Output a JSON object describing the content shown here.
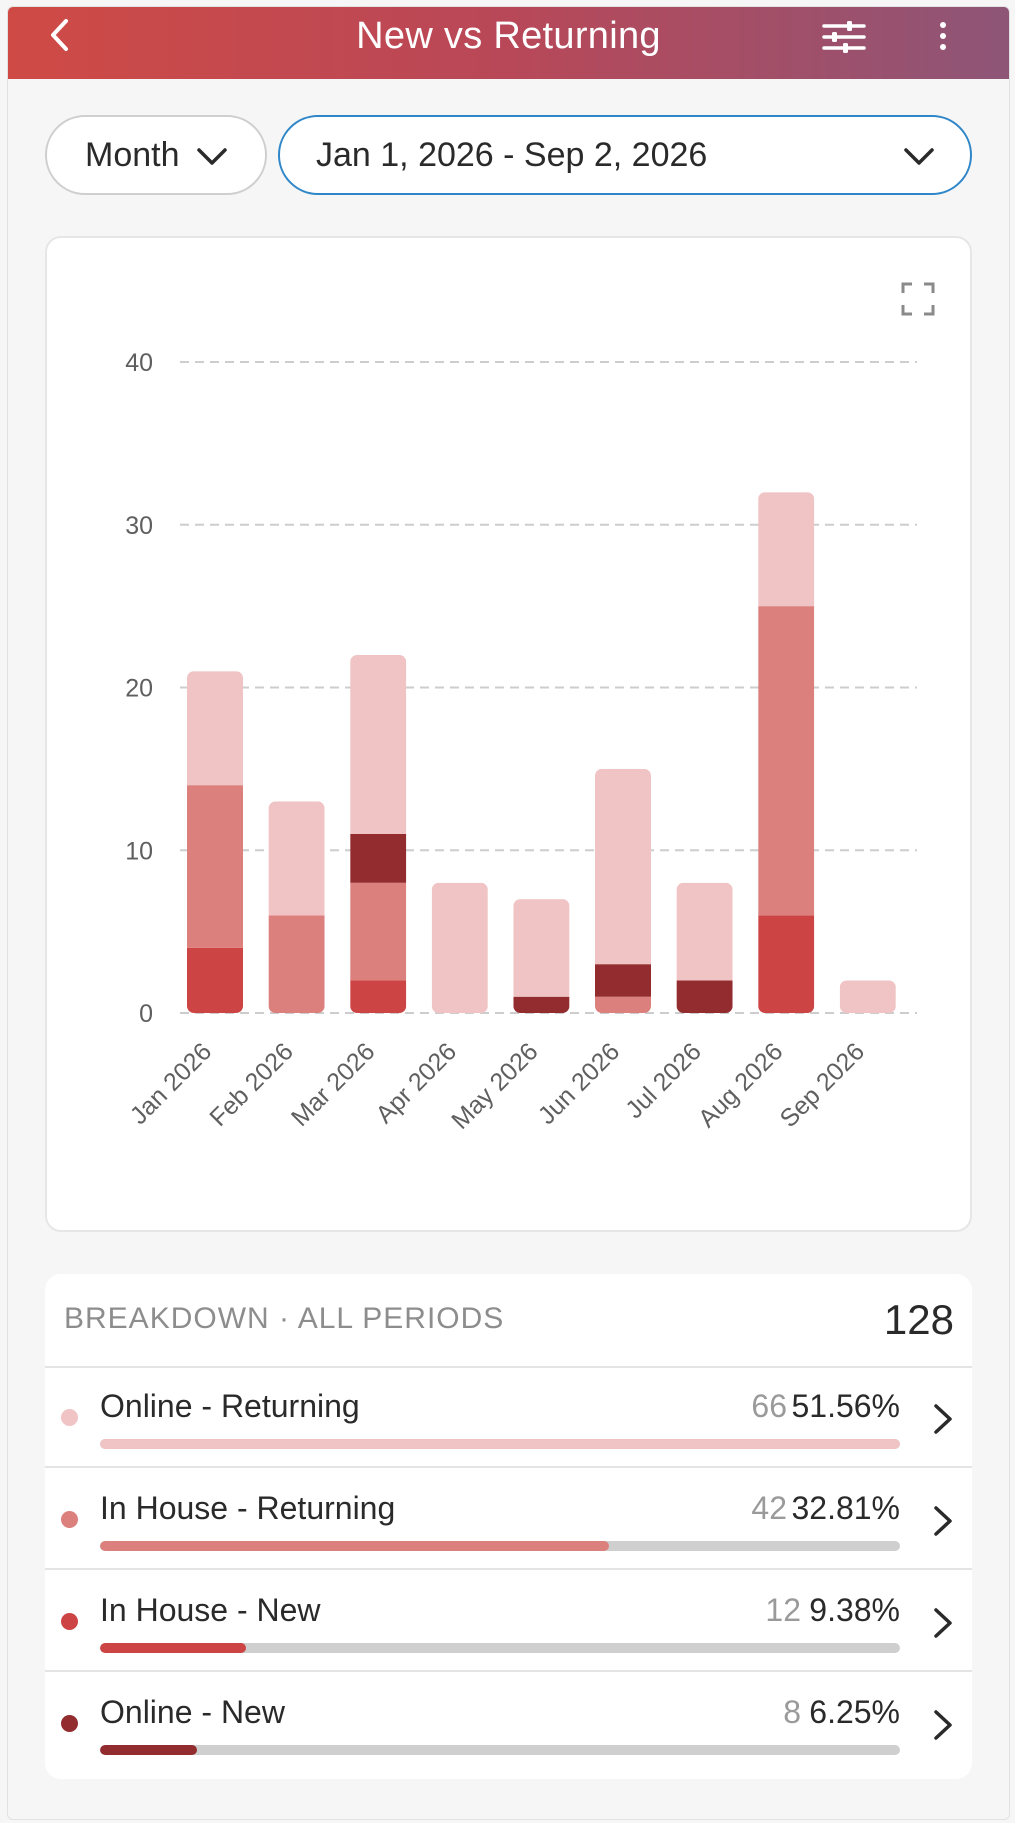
{
  "header": {
    "title": "New vs Returning"
  },
  "filters": {
    "period": "Month",
    "date_range": "Jan 1, 2026 - Sep 2, 2026"
  },
  "colors": {
    "online_returning": "#f0c3c4",
    "in_house_returning": "#db807c",
    "in_house_new": "#cc4444",
    "online_new": "#922c2e"
  },
  "chart_data": {
    "type": "bar",
    "stacked": true,
    "categories": [
      "Jan 2026",
      "Feb 2026",
      "Mar 2026",
      "Apr 2026",
      "May 2026",
      "Jun 2026",
      "Jul 2026",
      "Aug 2026",
      "Sep 2026"
    ],
    "series": [
      {
        "name": "In House - New",
        "color": "#cc4444",
        "values": [
          4,
          0,
          2,
          0,
          0,
          0,
          0,
          6,
          0
        ]
      },
      {
        "name": "In House - Returning",
        "color": "#db807c",
        "values": [
          10,
          6,
          6,
          0,
          0,
          1,
          0,
          19,
          0
        ]
      },
      {
        "name": "Online - New",
        "color": "#922c2e",
        "values": [
          0,
          0,
          3,
          0,
          1,
          2,
          2,
          0,
          0
        ]
      },
      {
        "name": "Online - Returning",
        "color": "#f0c3c4",
        "values": [
          7,
          7,
          11,
          8,
          6,
          12,
          6,
          7,
          2
        ]
      }
    ],
    "yticks": [
      0,
      10,
      20,
      30,
      40
    ],
    "ylim": [
      0,
      40
    ],
    "grid": true
  },
  "breakdown": {
    "title": "BREAKDOWN · ALL PERIODS",
    "total": "128",
    "rows": [
      {
        "label": "Online - Returning",
        "count": "66",
        "pct": "51.56%",
        "fraction": 1.0,
        "color": "#f0c3c4"
      },
      {
        "label": "In House - Returning",
        "count": "42",
        "pct": "32.81%",
        "fraction": 0.636,
        "color": "#db807c"
      },
      {
        "label": "In House - New",
        "count": "12",
        "pct": "9.38%",
        "fraction": 0.182,
        "color": "#cc4444"
      },
      {
        "label": "Online - New",
        "count": "8",
        "pct": "6.25%",
        "fraction": 0.121,
        "color": "#922c2e"
      }
    ]
  }
}
